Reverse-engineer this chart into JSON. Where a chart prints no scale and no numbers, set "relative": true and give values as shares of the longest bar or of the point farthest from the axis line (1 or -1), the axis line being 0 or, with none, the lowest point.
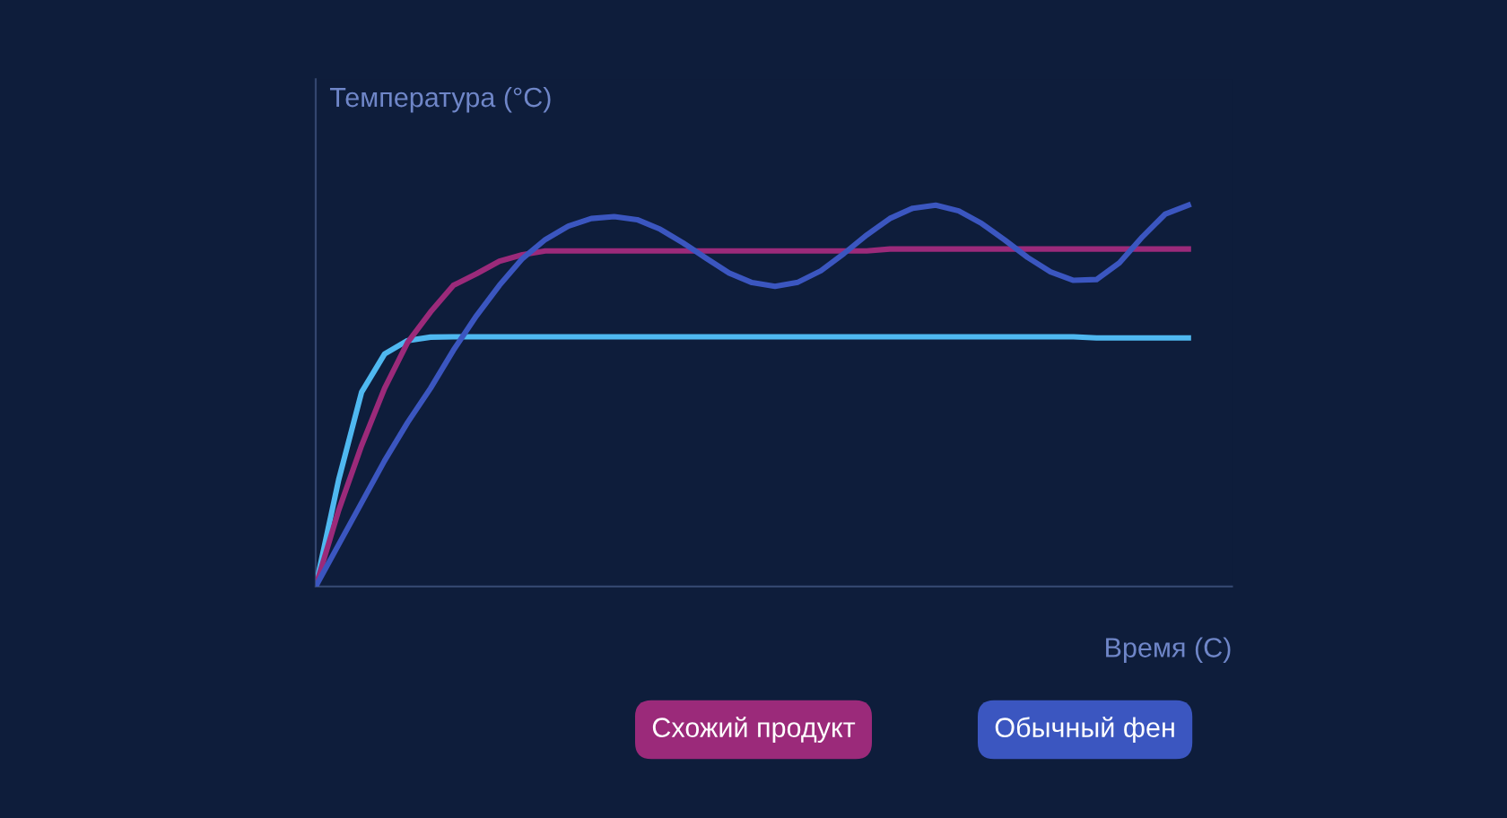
{
  "chart_data": {
    "type": "line",
    "relative": true,
    "legend": "bottom",
    "marker": "none",
    "line_style": "solid",
    "xlabel": "Время (С)",
    "ylabel": "Температура (°C)",
    "categories": [
      null,
      null,
      null,
      null,
      null,
      null,
      null,
      null,
      null,
      null,
      null,
      null,
      null,
      null,
      null,
      null,
      null,
      null,
      null,
      null,
      null,
      null,
      null,
      null,
      null,
      null,
      null,
      null,
      null,
      null,
      null,
      null,
      null,
      null,
      null,
      null,
      null,
      null,
      null
    ],
    "series": [
      {
        "color": "#4fb8f0",
        "values": [
          0,
          0.28,
          0.51,
          0.61,
          0.645,
          0.654,
          0.655,
          0.655,
          0.655,
          0.655,
          0.655,
          0.655,
          0.655,
          0.655,
          0.655,
          0.655,
          0.655,
          0.655,
          0.655,
          0.655,
          0.655,
          0.655,
          0.655,
          0.655,
          0.655,
          0.655,
          0.655,
          0.655,
          0.655,
          0.655,
          0.655,
          0.655,
          0.655,
          0.655,
          0.652,
          0.652,
          0.652,
          0.652,
          0.652
        ]
      },
      {
        "name": "Схожий продукт",
        "color": "#9b2a7a",
        "values": [
          0,
          0.2,
          0.37,
          0.52,
          0.64,
          0.72,
          0.79,
          0.82,
          0.853,
          0.87,
          0.88,
          0.88,
          0.88,
          0.88,
          0.88,
          0.88,
          0.88,
          0.88,
          0.88,
          0.88,
          0.88,
          0.88,
          0.88,
          0.88,
          0.88,
          0.885,
          0.885,
          0.885,
          0.885,
          0.885,
          0.885,
          0.885,
          0.885,
          0.885,
          0.885,
          0.885,
          0.885,
          0.885,
          0.885
        ]
      },
      {
        "name": "Обычный фен",
        "color": "#3b56c0",
        "values": [
          0,
          0.11,
          0.22,
          0.33,
          0.43,
          0.52,
          0.62,
          0.71,
          0.79,
          0.86,
          0.91,
          0.945,
          0.965,
          0.97,
          0.962,
          0.937,
          0.901,
          0.861,
          0.822,
          0.797,
          0.787,
          0.798,
          0.828,
          0.873,
          0.922,
          0.965,
          0.992,
          1.0,
          0.985,
          0.952,
          0.909,
          0.863,
          0.825,
          0.803,
          0.805,
          0.849,
          0.917,
          0.977,
          1.0
        ]
      }
    ]
  }
}
